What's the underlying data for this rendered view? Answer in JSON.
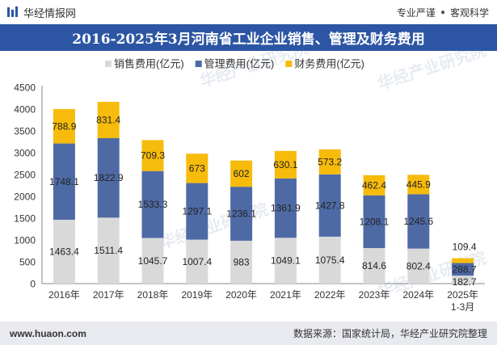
{
  "header": {
    "brand_name": "华经情报网",
    "tagline_left": "专业严谨",
    "tagline_right": "客观科学"
  },
  "title": "2016-2025年3月河南省工业企业销售、管理及财务费用",
  "footer": {
    "website": "www.huaon.com",
    "source": "数据来源：国家统计局，华经产业研究院整理"
  },
  "watermark": "华经产业研究院",
  "colors": {
    "title_bg": "#2c56a4",
    "sales": "#d9d9d9",
    "management": "#4e6aa5",
    "finance": "#f7bb0b"
  },
  "chart_data": {
    "type": "bar",
    "stacked": true,
    "categories": [
      "2016年",
      "2017年",
      "2018年",
      "2019年",
      "2020年",
      "2021年",
      "2022年",
      "2023年",
      "2024年",
      "2025年\n1-3月"
    ],
    "series": [
      {
        "name": "销售费用(亿元)",
        "color": "#d9d9d9",
        "values": [
          1463.4,
          1511.4,
          1045.7,
          1007.4,
          983,
          1049.1,
          1075.4,
          814.6,
          802.4,
          182.7
        ]
      },
      {
        "name": "管理费用(亿元)",
        "color": "#4e6aa5",
        "values": [
          1748.1,
          1822.9,
          1533.3,
          1297.1,
          1236.1,
          1361.9,
          1427.8,
          1208.1,
          1245.6,
          288.7
        ]
      },
      {
        "name": "财务费用(亿元)",
        "color": "#f7bb0b",
        "values": [
          788.9,
          831.4,
          709.3,
          673,
          602,
          630.1,
          573.2,
          462.4,
          445.9,
          109.4
        ]
      }
    ],
    "ylim": [
      0,
      4500
    ],
    "yticks": [
      0,
      500,
      1000,
      1500,
      2000,
      2500,
      3000,
      3500,
      4000,
      4500
    ],
    "legend_position": "top",
    "grid": false
  }
}
